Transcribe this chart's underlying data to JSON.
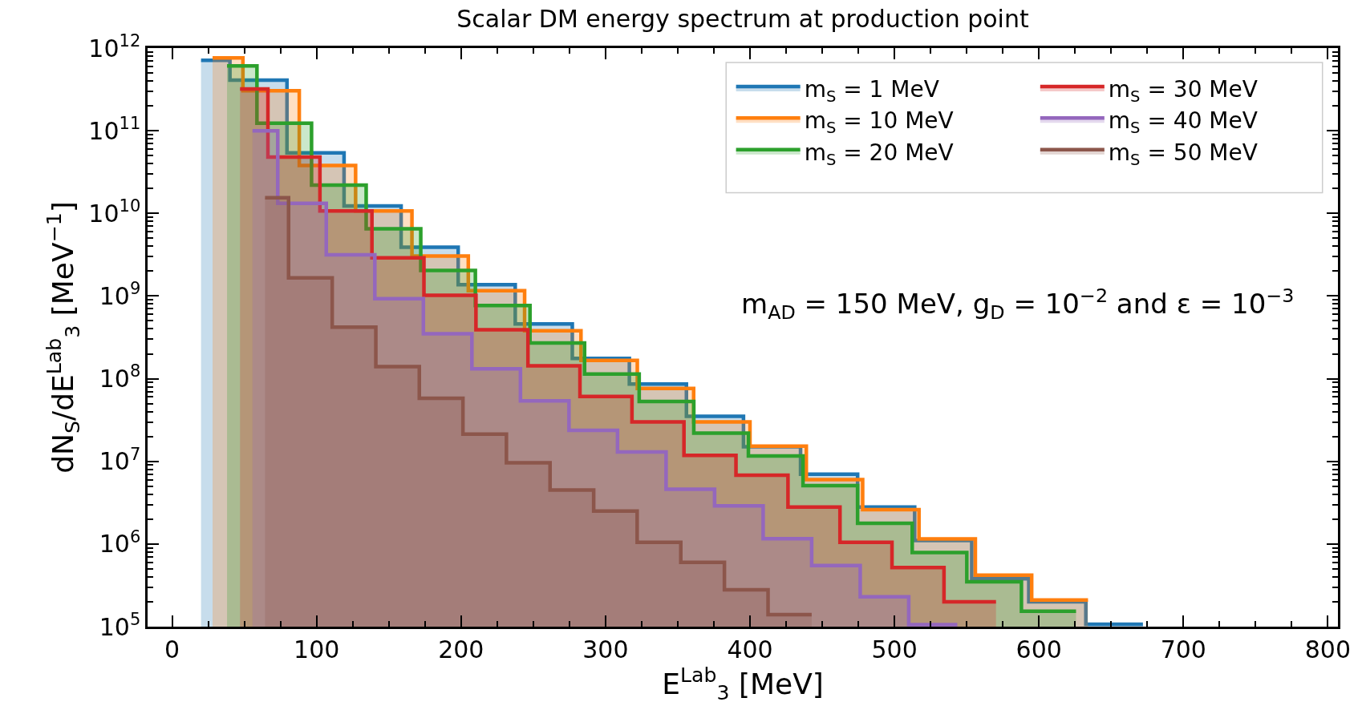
{
  "chart_data": {
    "type": "area",
    "title": "Scalar DM energy spectrum at production point",
    "xlabel": "E$^{Lab}$$_{3}$ [MeV]",
    "ylabel": "dN$_{S}$/dE$^{Lab}$$_{3}$ [MeV$^{−1}$]",
    "annotations": [
      "m$_{AD}$ = 150 MeV, g$_{D}$ = 10$^{−2}$ and ε = 10$^{−3}$"
    ],
    "series": [
      {
        "name": "m$_{S}$ = 1 MeV",
        "color": "#1f77b4",
        "x": [
          20,
          40,
          40,
          79.5,
          79.5,
          119,
          119,
          158.5,
          158.5,
          198,
          198,
          237.5,
          237.5,
          277,
          277,
          316.5,
          316.5,
          356,
          356,
          395.5,
          395.5,
          435,
          435,
          474.5,
          474.5,
          514,
          514,
          553.5,
          553.5,
          593,
          593,
          632.5,
          632.5,
          672
        ],
        "values": [
          710000000000.0,
          710000000000.0,
          410000000000.0,
          410000000000.0,
          54000000000.0,
          54000000000.0,
          12300000000.0,
          12300000000.0,
          3900000000.0,
          3900000000.0,
          1370000000.0,
          1370000000.0,
          460000000.0,
          460000000.0,
          176000000.0,
          176000000.0,
          86000000.0,
          86000000.0,
          35000000.0,
          35000000.0,
          15000000.0,
          15000000.0,
          7000000.0,
          7000000.0,
          2800000.0,
          2800000.0,
          1100000.0,
          1100000.0,
          380000.0,
          380000.0,
          200000.0,
          200000.0,
          107000.0,
          107000.0
        ]
      },
      {
        "name": "m$_{S}$ = 10 MeV",
        "color": "#ff7f0e",
        "x": [
          28,
          49,
          49,
          88,
          88,
          127,
          127,
          166,
          166,
          205,
          205,
          244,
          244,
          283,
          283,
          322,
          322,
          361,
          361,
          400,
          400,
          439,
          439,
          478,
          478,
          517,
          517,
          556,
          556,
          595,
          595,
          634
        ],
        "values": [
          760000000000.0,
          760000000000.0,
          305000000000.0,
          305000000000.0,
          38000000000.0,
          38000000000.0,
          10700000000.0,
          10700000000.0,
          3050000000.0,
          3050000000.0,
          1160000000.0,
          1160000000.0,
          380000000.0,
          380000000.0,
          166000000.0,
          166000000.0,
          76000000.0,
          76000000.0,
          30000000.0,
          30000000.0,
          15300000.0,
          15300000.0,
          6000000.0,
          6000000.0,
          2600000.0,
          2600000.0,
          1150000.0,
          1150000.0,
          420000.0,
          420000.0,
          210000.0,
          210000.0
        ]
      },
      {
        "name": "m$_{S}$ = 20 MeV",
        "color": "#2ca02c",
        "x": [
          38,
          58.7,
          58.7,
          96.5,
          96.5,
          134.3,
          134.3,
          172.1,
          172.1,
          209.9,
          209.9,
          247.7,
          247.7,
          285.5,
          285.5,
          323.3,
          323.3,
          361.1,
          361.1,
          398.9,
          398.9,
          436.7,
          436.7,
          474.5,
          474.5,
          512.3,
          512.3,
          550.1,
          550.1,
          587.9,
          587.9,
          625.7
        ],
        "values": [
          610000000000.0,
          610000000000.0,
          123000000000.0,
          123000000000.0,
          22000000000.0,
          22000000000.0,
          6500000000.0,
          6500000000.0,
          2040000000.0,
          2040000000.0,
          770000000.0,
          770000000.0,
          270000000.0,
          270000000.0,
          114000000.0,
          114000000.0,
          53000000.0,
          53000000.0,
          22000000.0,
          22000000.0,
          11600000.0,
          11600000.0,
          5100000.0,
          5100000.0,
          1780000.0,
          1780000.0,
          790000.0,
          790000.0,
          350000.0,
          350000.0,
          154000.0,
          154000.0
        ]
      },
      {
        "name": "m$_{S}$ = 30 MeV",
        "color": "#d62728",
        "x": [
          47,
          66.3,
          66.3,
          102.3,
          102.3,
          138.3,
          138.3,
          174.3,
          174.3,
          210.3,
          210.3,
          246.3,
          246.3,
          282.3,
          282.3,
          318.3,
          318.3,
          354.3,
          354.3,
          390.3,
          390.3,
          426.3,
          426.3,
          462.3,
          462.3,
          498.3,
          498.3,
          534.3,
          534.3,
          570.3
        ],
        "values": [
          320000000000.0,
          320000000000.0,
          48000000000.0,
          48000000000.0,
          10700000000.0,
          10700000000.0,
          2900000000.0,
          2900000000.0,
          1020000000.0,
          1020000000.0,
          390000000.0,
          390000000.0,
          143000000.0,
          143000000.0,
          61000000.0,
          61000000.0,
          30000000.0,
          30000000.0,
          11800000.0,
          11800000.0,
          6800000.0,
          6800000.0,
          2800000.0,
          2800000.0,
          1050000.0,
          1050000.0,
          520000.0,
          520000.0,
          200000.0,
          200000.0
        ]
      },
      {
        "name": "m$_{S}$ = 40 MeV",
        "color": "#9467bd",
        "x": [
          55.6,
          73.1,
          73.1,
          106.7,
          106.7,
          140.3,
          140.3,
          173.9,
          173.9,
          207.5,
          207.5,
          241.1,
          241.1,
          274.7,
          274.7,
          308.3,
          308.3,
          341.9,
          341.9,
          375.5,
          375.5,
          409.1,
          409.1,
          442.7,
          442.7,
          476.3,
          476.3,
          509.9,
          509.9,
          543.5
        ],
        "values": [
          100000000000.0,
          100000000000.0,
          13200000000.0,
          13200000000.0,
          3160000000.0,
          3160000000.0,
          930000000.0,
          930000000.0,
          350000000.0,
          350000000.0,
          132000000.0,
          132000000.0,
          54000000.0,
          54000000.0,
          23700000.0,
          23700000.0,
          13000000.0,
          13000000.0,
          4600000.0,
          4600000.0,
          2900000.0,
          2900000.0,
          1160000.0,
          1160000.0,
          550000.0,
          550000.0,
          230000.0,
          230000.0,
          106000.0,
          106000.0
        ]
      },
      {
        "name": "m$_{S}$ = 50 MeV",
        "color": "#8c564b",
        "x": [
          64.3,
          80.6,
          80.6,
          110.8,
          110.8,
          141,
          141,
          171.1,
          171.1,
          201.3,
          201.3,
          231.4,
          231.4,
          261.6,
          261.6,
          291.8,
          291.8,
          321.9,
          321.9,
          352.1,
          352.1,
          382.3,
          382.3,
          412.5,
          412.5,
          442.7
        ],
        "values": [
          15500000000.0,
          15500000000.0,
          1660000000.0,
          1660000000.0,
          420000000.0,
          420000000.0,
          140000000.0,
          140000000.0,
          58000000.0,
          58000000.0,
          21400000.0,
          21400000.0,
          9600000.0,
          9600000.0,
          4500000.0,
          4500000.0,
          2500000.0,
          2500000.0,
          1050000.0,
          1050000.0,
          600000.0,
          600000.0,
          280000.0,
          280000.0,
          140000.0,
          140000.0
        ]
      }
    ],
    "log": "y",
    "xlim": [
      -17,
      807
    ],
    "ylim": [
      100000,
      1000000000000
    ],
    "xticks": [
      0,
      100,
      200,
      300,
      400,
      500,
      600,
      700,
      800
    ],
    "yticks": [
      {
        "value": 100000,
        "label": "10$^{5}$"
      },
      {
        "value": 1000000,
        "label": "10$^{6}$"
      },
      {
        "value": 10000000,
        "label": "10$^{7}$"
      },
      {
        "value": 100000000,
        "label": "10$^{8}$"
      },
      {
        "value": 1000000000,
        "label": "10$^{9}$"
      },
      {
        "value": 10000000000,
        "label": "10$^{10}$"
      },
      {
        "value": 100000000000,
        "label": "10$^{11}$"
      },
      {
        "value": 1000000000000,
        "label": "10$^{12}$"
      }
    ],
    "legend": "top right"
  }
}
